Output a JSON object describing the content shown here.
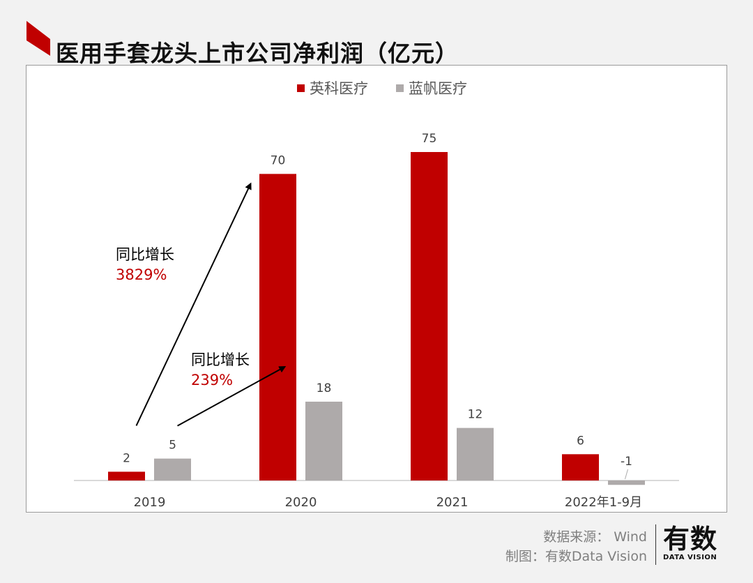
{
  "header": {
    "title": "医用手套龙头上市公司净利润（亿元）"
  },
  "chart_data": {
    "type": "bar",
    "categories": [
      "2019",
      "2020",
      "2021",
      "2022年1-9月"
    ],
    "series": [
      {
        "name": "英科医疗",
        "color": "#c00000",
        "values": [
          2,
          70,
          75,
          6
        ],
        "labels": [
          "2",
          "70",
          "75",
          "6"
        ]
      },
      {
        "name": "蓝帆医疗",
        "color": "#aeaaaa",
        "values": [
          5,
          18,
          12,
          -1
        ],
        "labels": [
          "5",
          "18",
          "12",
          "-1"
        ]
      }
    ],
    "legend_position": "top-center",
    "grid": false,
    "annotations": [
      {
        "label": "同比增长",
        "value": "3829%",
        "value_color": "#c00000"
      },
      {
        "label": "同比增长",
        "value": "239%",
        "value_color": "#c00000"
      }
    ]
  },
  "footer": {
    "source": "数据来源： Wind",
    "credit": "制图：有数Data Vision"
  },
  "logo": {
    "main": "有数",
    "sub": "DATA VISION"
  }
}
